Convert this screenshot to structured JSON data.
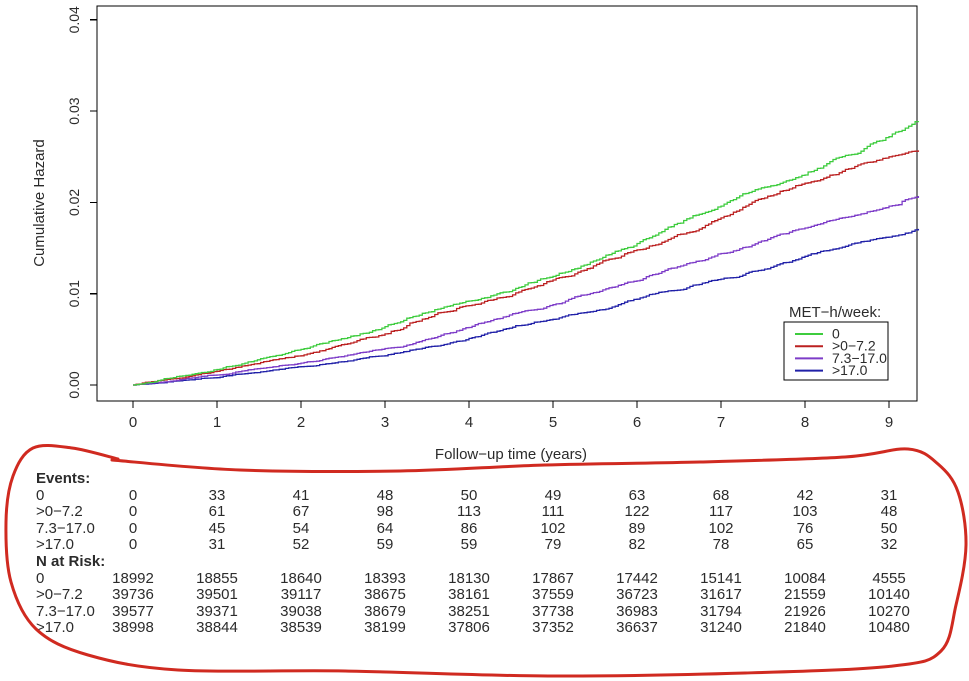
{
  "figure": {
    "background": "#ffffff",
    "text_color": "#2b2b2b"
  },
  "chart_data": {
    "type": "line",
    "subtype": "cumulative-hazard-step-curves",
    "title": "",
    "xlabel": "Follow−up time (years)",
    "ylabel": "Cumulative Hazard",
    "xlim": [
      0,
      9.4
    ],
    "ylim": [
      0,
      0.04
    ],
    "grid": false,
    "x_tick_values": [
      0,
      1,
      2,
      3,
      4,
      5,
      6,
      7,
      8,
      9
    ],
    "x_tick_labels": [
      "0",
      "1",
      "2",
      "3",
      "4",
      "5",
      "6",
      "7",
      "8",
      "9"
    ],
    "y_tick_values": [
      0,
      0.01,
      0.02,
      0.03,
      0.04
    ],
    "y_tick_labels": [
      "0.00",
      "0.01",
      "0.02",
      "0.03",
      "0.04"
    ],
    "legend": {
      "title": "MET−h/week:",
      "position": "bottom-right"
    },
    "x": [
      0,
      1,
      2,
      3,
      4,
      5,
      6,
      7,
      8,
      9,
      9.35
    ],
    "series": [
      {
        "name": "0",
        "color": "#3ecc3e",
        "values": [
          0,
          0.0017,
          0.0039,
          0.0064,
          0.0092,
          0.0119,
          0.0155,
          0.0196,
          0.023,
          0.0272,
          0.0289
        ]
      },
      {
        "name": ">0−7.2",
        "color": "#bb2020",
        "values": [
          0,
          0.0015,
          0.0032,
          0.0056,
          0.0087,
          0.0115,
          0.0148,
          0.0183,
          0.0221,
          0.025,
          0.0257
        ]
      },
      {
        "name": "7.3−17.0",
        "color": "#7d3cc8",
        "values": [
          0,
          0.0011,
          0.0024,
          0.004,
          0.0063,
          0.0088,
          0.0114,
          0.0144,
          0.0172,
          0.0196,
          0.0207
        ]
      },
      {
        "name": ">17.0",
        "color": "#2020a8",
        "values": [
          0,
          0.0008,
          0.002,
          0.0032,
          0.0051,
          0.0072,
          0.0094,
          0.0116,
          0.0141,
          0.0162,
          0.0171
        ]
      }
    ]
  },
  "risk_table": {
    "column_years": [
      0,
      1,
      2,
      3,
      4,
      5,
      6,
      7,
      8,
      9
    ],
    "sections": [
      {
        "title": "Events:",
        "rows": [
          {
            "label": "0",
            "values": [
              0,
              33,
              41,
              48,
              50,
              49,
              63,
              68,
              42,
              31
            ]
          },
          {
            "label": ">0−7.2",
            "values": [
              0,
              61,
              67,
              98,
              113,
              111,
              122,
              117,
              103,
              48
            ]
          },
          {
            "label": "7.3−17.0",
            "values": [
              0,
              45,
              54,
              64,
              86,
              102,
              89,
              102,
              76,
              50
            ]
          },
          {
            "label": ">17.0",
            "values": [
              0,
              31,
              52,
              59,
              59,
              79,
              82,
              78,
              65,
              32
            ]
          }
        ]
      },
      {
        "title": "N at Risk:",
        "rows": [
          {
            "label": "0",
            "values": [
              18992,
              18855,
              18640,
              18393,
              18130,
              17867,
              17442,
              15141,
              10084,
              4555
            ]
          },
          {
            "label": ">0−7.2",
            "values": [
              39736,
              39501,
              39117,
              38675,
              38161,
              37559,
              36723,
              31617,
              21559,
              10140
            ]
          },
          {
            "label": "7.3−17.0",
            "values": [
              39577,
              39371,
              39038,
              38679,
              38251,
              37738,
              36983,
              31794,
              21926,
              10270
            ]
          },
          {
            "label": ">17.0",
            "values": [
              38998,
              38844,
              38539,
              38199,
              37806,
              37352,
              36637,
              31240,
              21840,
              10480
            ]
          }
        ]
      }
    ]
  },
  "annotation": {
    "type": "freehand-loop",
    "color": "#d02a20",
    "stroke_width": 3,
    "encircles": "risk-table"
  }
}
